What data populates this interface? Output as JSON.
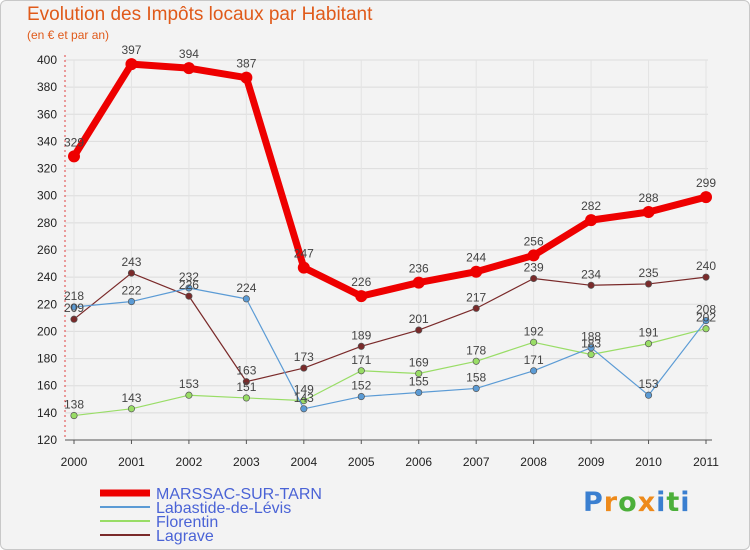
{
  "chart_data": {
    "type": "line",
    "title": "Evolution des Impôts locaux par Habitant",
    "subtitle": "(en € et par an)",
    "xlabel": "",
    "ylabel": "",
    "ylim": [
      120,
      400
    ],
    "yticks": [
      120,
      140,
      160,
      180,
      200,
      220,
      240,
      260,
      280,
      300,
      320,
      340,
      360,
      380,
      400
    ],
    "x": [
      "2000",
      "2001",
      "2002",
      "2003",
      "2004",
      "2005",
      "2006",
      "2007",
      "2008",
      "2009",
      "2010",
      "2011"
    ],
    "series": [
      {
        "name": "MARSSAC-SUR-TARN",
        "color": "#ee0000",
        "values": [
          329,
          397,
          394,
          387,
          247,
          226,
          236,
          244,
          256,
          282,
          288,
          299
        ]
      },
      {
        "name": "Labastide-de-Lévis",
        "color": "#5b9bd5",
        "values": [
          218,
          222,
          232,
          224,
          143,
          152,
          155,
          158,
          171,
          188,
          153,
          208
        ]
      },
      {
        "name": "Florentin",
        "color": "#99dd66",
        "values": [
          138,
          143,
          153,
          151,
          149,
          171,
          169,
          178,
          192,
          183,
          191,
          202
        ]
      },
      {
        "name": "Lagrave",
        "color": "#7a2a2a",
        "values": [
          209,
          243,
          226,
          163,
          173,
          189,
          201,
          217,
          239,
          234,
          235,
          240
        ]
      }
    ],
    "grid": true,
    "legend": "bottom-left"
  },
  "brand": {
    "letters": [
      "P",
      "r",
      "o",
      "x",
      "i",
      "t",
      "i"
    ],
    "colors": [
      "#3a7fd0",
      "#ee8a1a",
      "#4caf3a",
      "#ee8a1a",
      "#3a7fd0",
      "#4caf3a",
      "#3a7fd0"
    ]
  }
}
